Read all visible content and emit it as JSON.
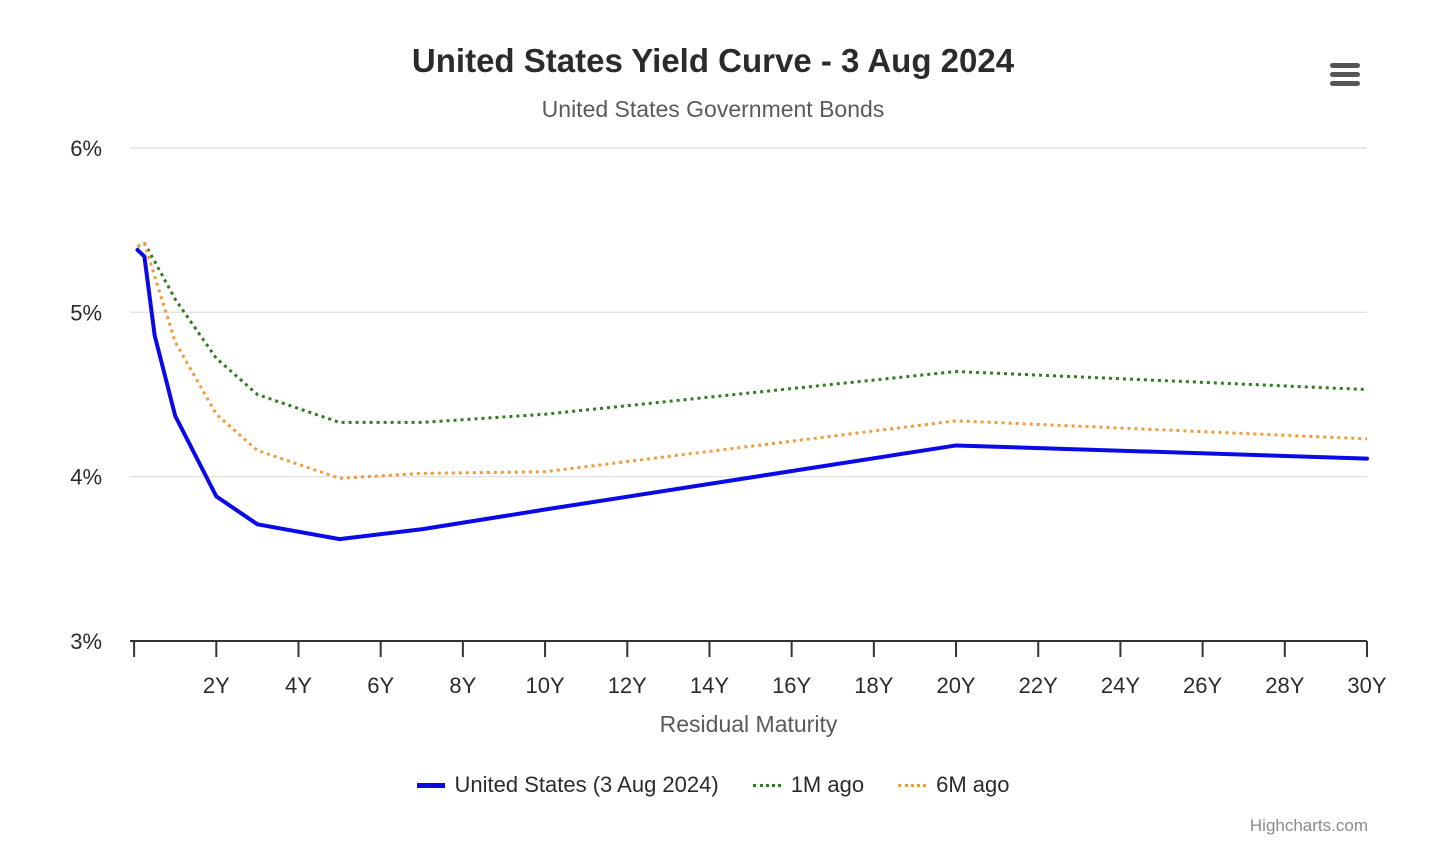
{
  "chart_data": {
    "type": "line",
    "title": "United States Yield Curve - 3 Aug 2024",
    "subtitle": "United States Government Bonds",
    "xlabel": "Residual Maturity",
    "ylabel": "",
    "xlim": [
      -0.1,
      30
    ],
    "ylim": [
      3,
      6
    ],
    "x_ticks": [
      {
        "value": 0,
        "label": ""
      },
      {
        "value": 2,
        "label": "2Y"
      },
      {
        "value": 4,
        "label": "4Y"
      },
      {
        "value": 6,
        "label": "6Y"
      },
      {
        "value": 8,
        "label": "8Y"
      },
      {
        "value": 10,
        "label": "10Y"
      },
      {
        "value": 12,
        "label": "12Y"
      },
      {
        "value": 14,
        "label": "14Y"
      },
      {
        "value": 16,
        "label": "16Y"
      },
      {
        "value": 18,
        "label": "18Y"
      },
      {
        "value": 20,
        "label": "20Y"
      },
      {
        "value": 22,
        "label": "22Y"
      },
      {
        "value": 24,
        "label": "24Y"
      },
      {
        "value": 26,
        "label": "26Y"
      },
      {
        "value": 28,
        "label": "28Y"
      },
      {
        "value": 30,
        "label": "30Y"
      }
    ],
    "y_ticks": [
      {
        "value": 3,
        "label": "3%"
      },
      {
        "value": 4,
        "label": "4%"
      },
      {
        "value": 5,
        "label": "5%"
      },
      {
        "value": 6,
        "label": "6%"
      }
    ],
    "grid": true,
    "legend_position": "bottom-center",
    "series": [
      {
        "name": "United States (3 Aug 2024)",
        "color": "#0a0ae6",
        "style": "solid",
        "x": [
          0.083,
          0.25,
          0.5,
          1,
          2,
          3,
          5,
          7,
          10,
          20,
          30
        ],
        "y": [
          5.38,
          5.34,
          4.86,
          4.37,
          3.88,
          3.71,
          3.62,
          3.68,
          3.8,
          4.19,
          4.11
        ]
      },
      {
        "name": "1M ago",
        "color": "#2f7d1f",
        "style": "dotted",
        "x": [
          0.083,
          0.25,
          0.5,
          1,
          2,
          3,
          5,
          7,
          10,
          20,
          30
        ],
        "y": [
          5.4,
          5.42,
          5.31,
          5.08,
          4.72,
          4.5,
          4.33,
          4.33,
          4.38,
          4.64,
          4.53
        ]
      },
      {
        "name": "6M ago",
        "color": "#f39a3a",
        "style": "dotted",
        "x": [
          0.083,
          0.25,
          0.5,
          1,
          2,
          3,
          5,
          7,
          10,
          20,
          30
        ],
        "y": [
          5.4,
          5.42,
          5.22,
          4.82,
          4.38,
          4.16,
          3.99,
          4.02,
          4.03,
          4.34,
          4.23
        ]
      }
    ]
  },
  "credits": "Highcharts.com",
  "icons": {
    "menu": "hamburger-menu-icon"
  }
}
